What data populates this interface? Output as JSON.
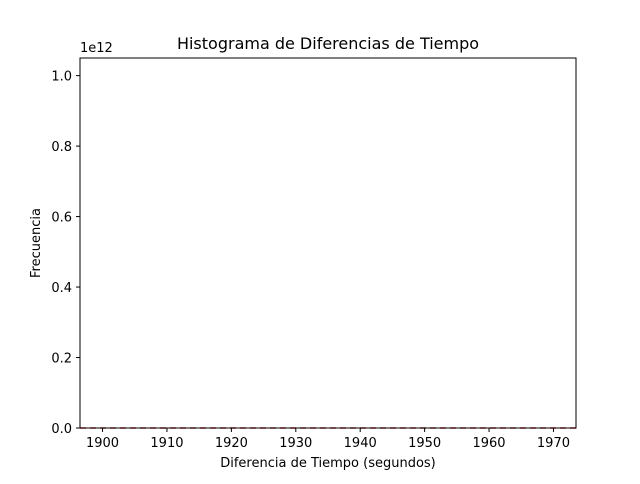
{
  "chart_data": {
    "type": "bar",
    "title": "Histograma de Diferencias de Tiempo",
    "xlabel": "Diferencia de Tiempo (segundos)",
    "ylabel": "Frecuencia",
    "y_offset_text": "1e12",
    "xlim": [
      1896.5,
      1973.5
    ],
    "ylim": [
      0,
      1.05
    ],
    "y_scale_multiplier": 1000000000000.0,
    "x_ticks": [
      1900,
      1910,
      1920,
      1930,
      1940,
      1950,
      1960,
      1970
    ],
    "x_tick_labels": [
      "1900",
      "1910",
      "1920",
      "1930",
      "1940",
      "1950",
      "1960",
      "1970"
    ],
    "y_ticks": [
      0.0,
      0.2,
      0.4,
      0.6,
      0.8,
      1.0
    ],
    "y_tick_labels": [
      "0.0",
      "0.2",
      "0.4",
      "0.6",
      "0.8",
      "1.0"
    ],
    "grid": false,
    "legend": "none",
    "bins": [],
    "reference_line": {
      "orientation": "horizontal",
      "y": 0,
      "style": "dashed",
      "color": "#d62728"
    }
  }
}
